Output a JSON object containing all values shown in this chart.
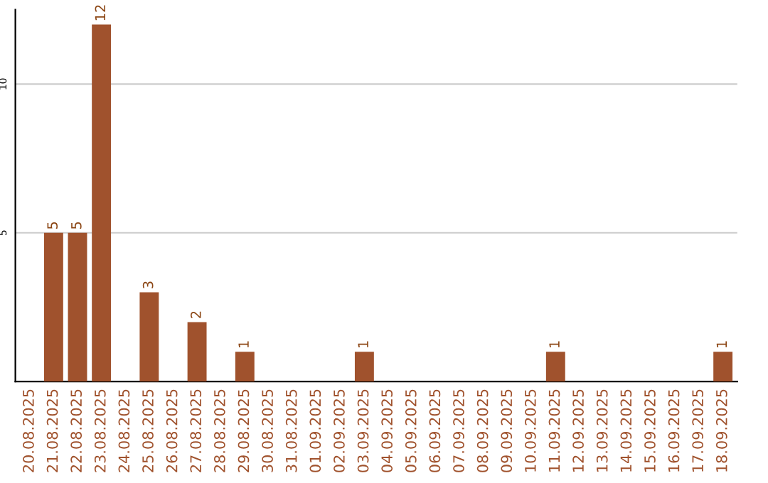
{
  "chart_data": {
    "type": "bar",
    "categories": [
      "20.08.2025",
      "21.08.2025",
      "22.08.2025",
      "23.08.2025",
      "24.08.2025",
      "25.08.2025",
      "26.08.2025",
      "27.08.2025",
      "28.08.2025",
      "29.08.2025",
      "30.08.2025",
      "31.08.2025",
      "01.09.2025",
      "02.09.2025",
      "03.09.2025",
      "04.09.2025",
      "05.09.2025",
      "06.09.2025",
      "07.09.2025",
      "08.09.2025",
      "09.09.2025",
      "10.09.2025",
      "11.09.2025",
      "12.09.2025",
      "13.09.2025",
      "14.09.2025",
      "15.09.2025",
      "16.09.2025",
      "17.09.2025",
      "18.09.2025"
    ],
    "values": [
      null,
      5,
      5,
      12,
      null,
      3,
      null,
      2,
      null,
      1,
      null,
      null,
      null,
      null,
      1,
      null,
      null,
      null,
      null,
      null,
      null,
      null,
      1,
      null,
      null,
      null,
      null,
      null,
      null,
      1
    ],
    "color": "#a0522d",
    "ylim": [
      0,
      12.5
    ],
    "yticks": [
      5,
      10
    ],
    "grid": "y",
    "data_labels": true
  }
}
